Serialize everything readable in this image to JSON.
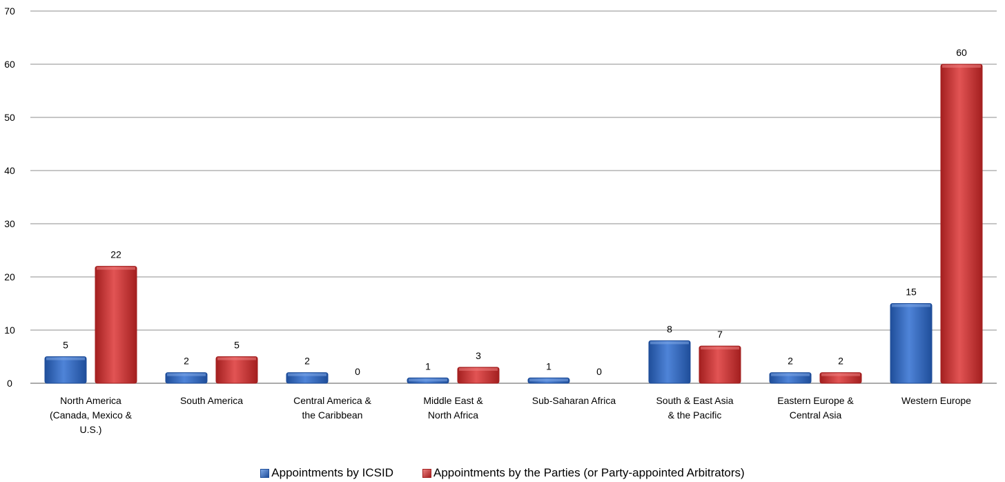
{
  "chart_data": {
    "type": "bar",
    "categories": [
      [
        "North America",
        "(Canada, Mexico &",
        "U.S.)"
      ],
      [
        "South America"
      ],
      [
        "Central America &",
        "the Caribbean"
      ],
      [
        "Middle East &",
        "North Africa"
      ],
      [
        "Sub-Saharan Africa"
      ],
      [
        "South & East Asia",
        "& the Pacific"
      ],
      [
        "Eastern Europe &",
        "Central Asia"
      ],
      [
        "Western Europe"
      ]
    ],
    "series": [
      {
        "name": "Appointments by ICSID",
        "values": [
          5,
          2,
          2,
          1,
          1,
          8,
          2,
          15
        ],
        "color": "#3a6fc4",
        "color_dark": "#1f4e9a",
        "color_light": "#7fa8e6"
      },
      {
        "name": "Appointments by the Parties (or Party-appointed Arbitrators)",
        "values": [
          22,
          5,
          0,
          3,
          0,
          7,
          2,
          60
        ],
        "color": "#d03a3a",
        "color_dark": "#a31f1f",
        "color_light": "#ec8080"
      }
    ],
    "ylim": [
      0,
      70
    ],
    "yticks": [
      0,
      10,
      20,
      30,
      40,
      50,
      60,
      70
    ],
    "grid": true,
    "legend_position": "bottom"
  }
}
